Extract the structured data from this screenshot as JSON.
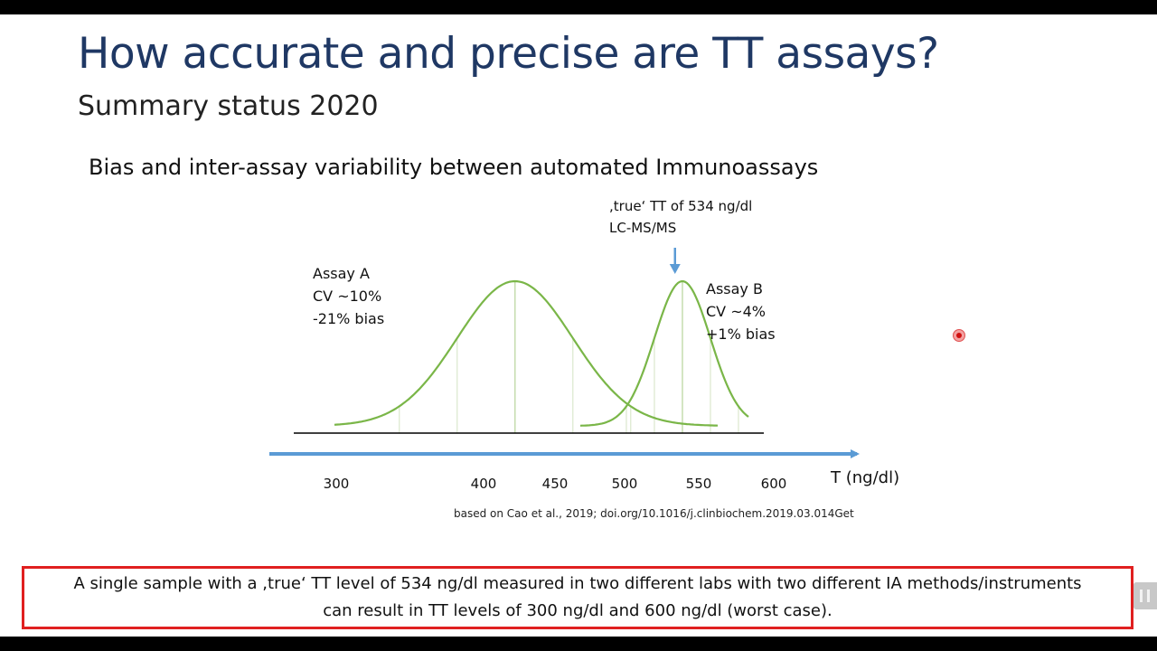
{
  "slide": {
    "title": "How accurate and precise are TT assays?",
    "subtitle": "Summary status 2020",
    "section_heading": "Bias and inter-assay variability between automated Immunoassays",
    "true_value_label": [
      ",true‘ TT of 534 ng/dl",
      "LC-MS/MS"
    ],
    "assay_a_label": [
      "Assay A",
      "CV ~10%",
      "-21% bias"
    ],
    "assay_b_label": [
      "Assay B",
      "CV ~4%",
      "+1% bias"
    ],
    "citation": "based on Cao et al., 2019; doi.org/10.1016/j.clinbiochem.2019.03.014Get",
    "conclusion": "A single sample with a ,true‘ TT level of 534 ng/dl measured in two different labs with two different IA methods/instruments can result in TT levels of 300 ng/dl and 600 ng/dl (worst case)."
  },
  "chart_data": {
    "type": "line",
    "xlabel": "T (ng/dl)",
    "x_ticks": [
      300,
      400,
      450,
      500,
      550,
      600
    ],
    "true_value": 534,
    "series": [
      {
        "name": "Assay A",
        "mean": 422,
        "cv_percent": 10,
        "bias_percent": -21
      },
      {
        "name": "Assay B",
        "mean": 539,
        "cv_percent": 4,
        "bias_percent": 1
      }
    ],
    "colors": {
      "curve": "#7ab648",
      "arrow": "#5b9bd5",
      "axis": "#5b9bd5",
      "baseline": "#000000"
    }
  }
}
